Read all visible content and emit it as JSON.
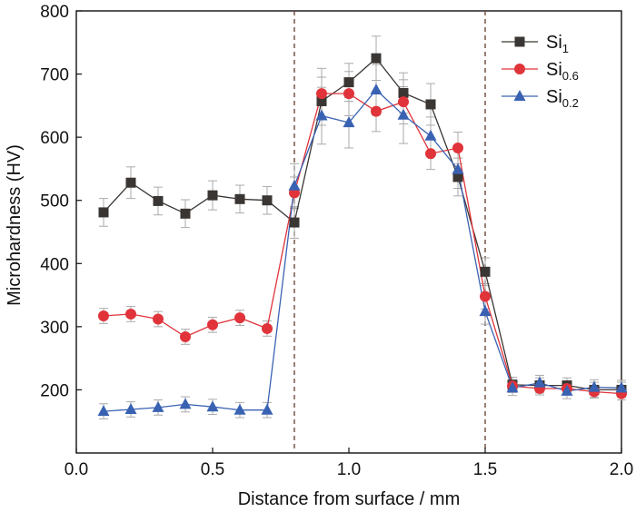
{
  "chart_data": {
    "type": "line",
    "title": "",
    "xlabel": "Distance from surface / mm",
    "ylabel": "Microhardness (HV)",
    "xlim": [
      0.0,
      2.0
    ],
    "ylim": [
      100,
      800
    ],
    "xticks": [
      0.0,
      0.5,
      1.0,
      1.5,
      2.0
    ],
    "xtick_labels": [
      "0.0",
      "0.5",
      "1.0",
      "1.5",
      "2.0"
    ],
    "yticks": [
      200,
      300,
      400,
      500,
      600,
      700,
      800
    ],
    "ytick_labels": [
      "200",
      "300",
      "400",
      "500",
      "600",
      "700",
      "800"
    ],
    "grid": false,
    "legend_position": "top-right",
    "vertical_lines": [
      0.8,
      1.5
    ],
    "x": [
      0.1,
      0.2,
      0.3,
      0.4,
      0.5,
      0.6,
      0.7,
      0.8,
      0.9,
      1.0,
      1.1,
      1.2,
      1.3,
      1.4,
      1.5,
      1.6,
      1.7,
      1.8,
      1.9,
      2.0
    ],
    "series": [
      {
        "name": "Si",
        "name_sub": "1",
        "color": "#3a3633",
        "marker": "square",
        "values": [
          481,
          528,
          499,
          479,
          508,
          502,
          500,
          465,
          657,
          687,
          725,
          670,
          652,
          537,
          387,
          208,
          207,
          207,
          200,
          200
        ],
        "errors": [
          22,
          25,
          22,
          22,
          23,
          22,
          22,
          25,
          38,
          30,
          35,
          32,
          33,
          30,
          22,
          12,
          12,
          12,
          12,
          12
        ]
      },
      {
        "name": "Si",
        "name_sub": "0.6",
        "color": "#e0343a",
        "marker": "circle",
        "values": [
          317,
          320,
          312,
          284,
          303,
          314,
          297,
          512,
          669,
          669,
          641,
          656,
          574,
          583,
          348,
          206,
          202,
          202,
          197,
          194
        ],
        "errors": [
          12,
          12,
          12,
          12,
          12,
          12,
          12,
          25,
          40,
          35,
          32,
          35,
          25,
          25,
          20,
          10,
          10,
          10,
          10,
          10
        ]
      },
      {
        "name": "Si",
        "name_sub": "0.2",
        "color": "#3a62b3",
        "marker": "triangle",
        "values": [
          166,
          169,
          172,
          177,
          173,
          168,
          168,
          523,
          634,
          623,
          675,
          635,
          602,
          549,
          324,
          203,
          211,
          198,
          204,
          203
        ],
        "errors": [
          12,
          12,
          12,
          12,
          12,
          12,
          12,
          35,
          45,
          40,
          40,
          45,
          30,
          30,
          20,
          12,
          12,
          12,
          12,
          12
        ]
      }
    ]
  }
}
